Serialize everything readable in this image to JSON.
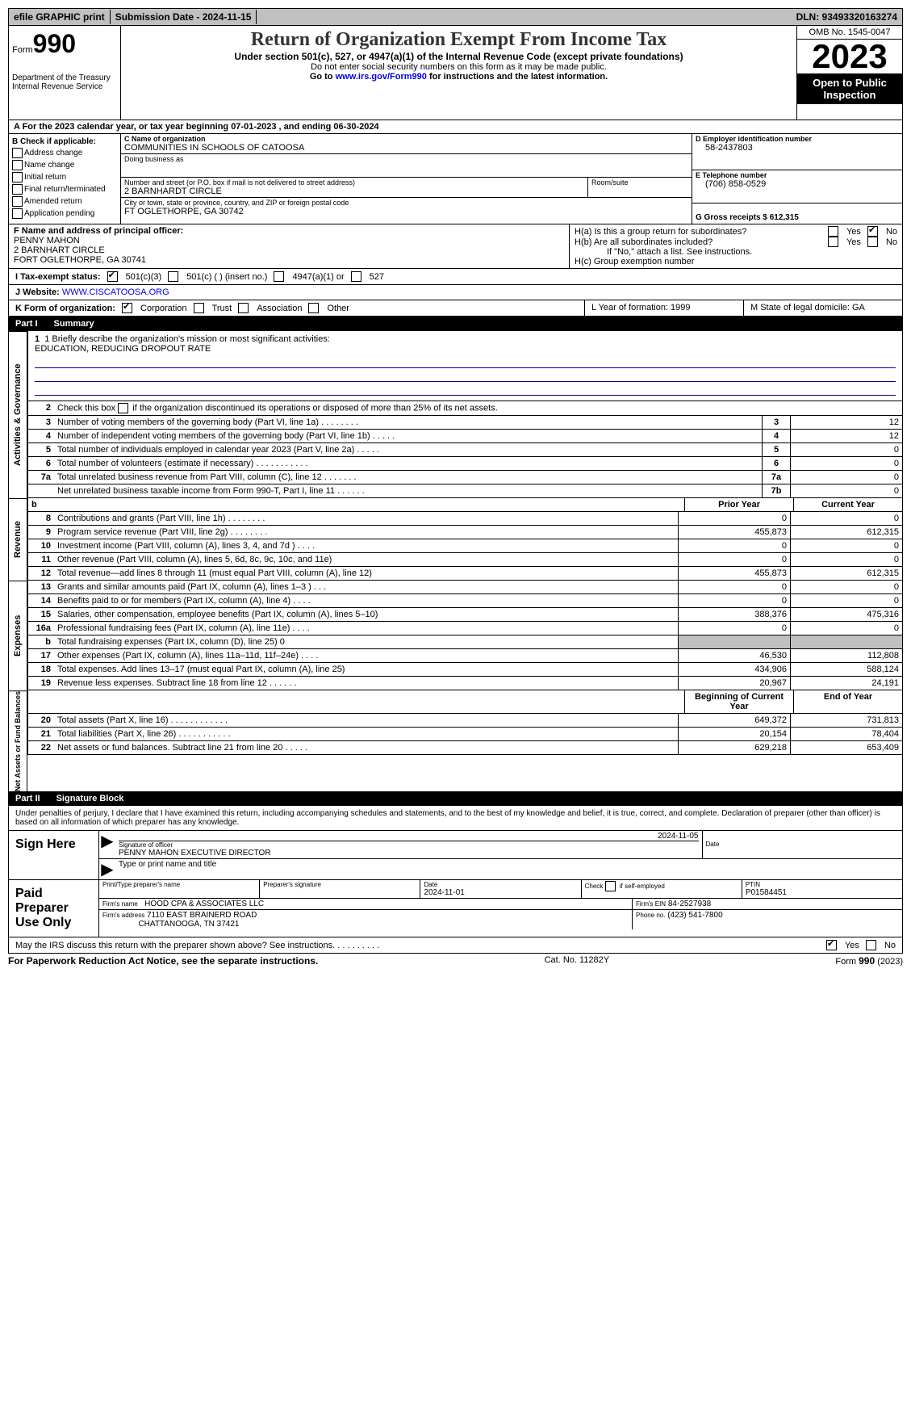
{
  "top_bar": {
    "efile": "efile GRAPHIC print",
    "submission": "Submission Date - 2024-11-15",
    "dln": "DLN: 93493320163274"
  },
  "header": {
    "form_prefix": "Form",
    "form_num": "990",
    "dept": "Department of the Treasury Internal Revenue Service",
    "title": "Return of Organization Exempt From Income Tax",
    "sub": "Under section 501(c), 527, or 4947(a)(1) of the Internal Revenue Code (except private foundations)",
    "note1": "Do not enter social security numbers on this form as it may be made public.",
    "note2_pre": "Go to ",
    "note2_link": "www.irs.gov/Form990",
    "note2_post": " for instructions and the latest information.",
    "omb": "OMB No. 1545-0047",
    "year": "2023",
    "open": "Open to Public Inspection"
  },
  "row_a": "A For the 2023 calendar year, or tax year beginning 07-01-2023   , and ending 06-30-2024",
  "box_b": {
    "label": "B Check if applicable:",
    "opts": [
      "Address change",
      "Name change",
      "Initial return",
      "Final return/terminated",
      "Amended return",
      "Application pending"
    ]
  },
  "box_c": {
    "name_lbl": "C Name of organization",
    "name": "COMMUNITIES IN SCHOOLS OF CATOOSA",
    "dba_lbl": "Doing business as",
    "dba": "",
    "street_lbl": "Number and street (or P.O. box if mail is not delivered to street address)",
    "street": "2 BARNHARDT CIRCLE",
    "room_lbl": "Room/suite",
    "city_lbl": "City or town, state or province, country, and ZIP or foreign postal code",
    "city": "FT OGLETHORPE, GA   30742"
  },
  "box_d": {
    "lbl": "D Employer identification number",
    "val": "58-2437803"
  },
  "box_e": {
    "lbl": "E Telephone number",
    "val": "(706) 858-0529"
  },
  "box_g": {
    "lbl": "G Gross receipts $ 612,315"
  },
  "box_f": {
    "lbl": "F  Name and address of principal officer:",
    "l1": "PENNY MAHON",
    "l2": "2 BARNHART CIRCLE",
    "l3": "FORT OGLETHORPE, GA   30741"
  },
  "box_h": {
    "ha": "H(a)  Is this a group return for subordinates?",
    "hb": "H(b)  Are all subordinates included?",
    "hnote": "If \"No,\" attach a list. See instructions.",
    "hc": "H(c)  Group exemption number"
  },
  "row_i": {
    "lbl": "I     Tax-exempt status:",
    "o1": "501(c)(3)",
    "o2": "501(c) (  ) (insert no.)",
    "o3": "4947(a)(1) or",
    "o4": "527"
  },
  "row_j": {
    "lbl": "J     Website:",
    "val": " WWW.CISCATOOSA.ORG"
  },
  "row_k": {
    "lbl": "K Form of organization:",
    "o1": "Corporation",
    "o2": "Trust",
    "o3": "Association",
    "o4": "Other"
  },
  "row_l": "L Year of formation: 1999",
  "row_m": "M State of legal domicile: GA",
  "part1": {
    "label": "Part I",
    "title": "Summary"
  },
  "mission": {
    "lbl": "1   Briefly describe the organization's mission or most significant activities:",
    "val": "EDUCATION, REDUCING DROPOUT RATE"
  },
  "line2": "Check this box      if the organization discontinued its operations or disposed of more than 25% of its net assets.",
  "gov_lines": [
    {
      "n": "3",
      "d": "Number of voting members of the governing body (Part VI, line 1a)  .   .   .   .   .   .   .   .",
      "b": "3",
      "v": "12"
    },
    {
      "n": "4",
      "d": "Number of independent voting members of the governing body (Part VI, line 1b)  .   .   .   .   .",
      "b": "4",
      "v": "12"
    },
    {
      "n": "5",
      "d": "Total number of individuals employed in calendar year 2023 (Part V, line 2a)  .   .   .   .   .",
      "b": "5",
      "v": "0"
    },
    {
      "n": "6",
      "d": "Total number of volunteers (estimate if necessary)   .   .   .   .   .   .   .   .   .   .   .",
      "b": "6",
      "v": "0"
    },
    {
      "n": "7a",
      "d": "Total unrelated business revenue from Part VIII, column (C), line 12    .   .   .   .   .   .   .",
      "b": "7a",
      "v": "0"
    },
    {
      "n": "",
      "d": "Net unrelated business taxable income from Form 990-T, Part I, line 11   .   .   .   .   .   .",
      "b": "7b",
      "v": "0"
    }
  ],
  "rev_header": {
    "c1": "Prior Year",
    "c2": "Current Year"
  },
  "rev_lines": [
    {
      "n": "8",
      "d": "Contributions and grants (Part VIII, line 1h)   .   .   .   .   .   .   .   .",
      "v1": "0",
      "v2": "0"
    },
    {
      "n": "9",
      "d": "Program service revenue (Part VIII, line 2g)   .   .   .   .   .   .   .   .",
      "v1": "455,873",
      "v2": "612,315"
    },
    {
      "n": "10",
      "d": "Investment income (Part VIII, column (A), lines 3, 4, and 7d )   .   .   .   .",
      "v1": "0",
      "v2": "0"
    },
    {
      "n": "11",
      "d": "Other revenue (Part VIII, column (A), lines 5, 6d, 8c, 9c, 10c, and 11e)",
      "v1": "0",
      "v2": "0"
    },
    {
      "n": "12",
      "d": "Total revenue—add lines 8 through 11 (must equal Part VIII, column (A), line 12)",
      "v1": "455,873",
      "v2": "612,315"
    }
  ],
  "exp_lines": [
    {
      "n": "13",
      "d": "Grants and similar amounts paid (Part IX, column (A), lines 1–3 )   .   .   .",
      "v1": "0",
      "v2": "0"
    },
    {
      "n": "14",
      "d": "Benefits paid to or for members (Part IX, column (A), line 4)   .   .   .   .",
      "v1": "0",
      "v2": "0"
    },
    {
      "n": "15",
      "d": "Salaries, other compensation, employee benefits (Part IX, column (A), lines 5–10)",
      "v1": "388,376",
      "v2": "475,316"
    },
    {
      "n": "16a",
      "d": "Professional fundraising fees (Part IX, column (A), line 11e)   .   .   .   .",
      "v1": "0",
      "v2": "0"
    },
    {
      "n": "b",
      "d": "Total fundraising expenses (Part IX, column (D), line 25) 0",
      "v1": "grey",
      "v2": "grey"
    },
    {
      "n": "17",
      "d": "Other expenses (Part IX, column (A), lines 11a–11d, 11f–24e)   .   .   .   .",
      "v1": "46,530",
      "v2": "112,808"
    },
    {
      "n": "18",
      "d": "Total expenses. Add lines 13–17 (must equal Part IX, column (A), line 25)",
      "v1": "434,906",
      "v2": "588,124"
    },
    {
      "n": "19",
      "d": "Revenue less expenses. Subtract line 18 from line 12   .   .   .   .   .   .",
      "v1": "20,967",
      "v2": "24,191"
    }
  ],
  "net_header": {
    "c1": "Beginning of Current Year",
    "c2": "End of Year"
  },
  "net_lines": [
    {
      "n": "20",
      "d": "Total assets (Part X, line 16)   .   .   .   .   .   .   .   .   .   .   .   .",
      "v1": "649,372",
      "v2": "731,813"
    },
    {
      "n": "21",
      "d": "Total liabilities (Part X, line 26)   .   .   .   .   .   .   .   .   .   .   .",
      "v1": "20,154",
      "v2": "78,404"
    },
    {
      "n": "22",
      "d": "Net assets or fund balances. Subtract line 21 from line 20   .   .   .   .   .",
      "v1": "629,218",
      "v2": "653,409"
    }
  ],
  "vlabels": {
    "gov": "Activities & Governance",
    "rev": "Revenue",
    "exp": "Expenses",
    "net": "Net Assets or Fund Balances"
  },
  "part2": {
    "label": "Part II",
    "title": "Signature Block"
  },
  "perjury": "Under penalties of perjury, I declare that I have examined this return, including accompanying schedules and statements, and to the best of my knowledge and belief, it is true, correct, and complete. Declaration of preparer (other than officer) is based on all information of which preparer has any knowledge.",
  "sign": {
    "here": "Sign Here",
    "date": "2024-11-05",
    "sig_lbl": "Signature of officer",
    "name": "PENNY MAHON  EXECUTIVE DIRECTOR",
    "type_lbl": "Type or print name and title",
    "date_lbl": "Date"
  },
  "paid": {
    "label": "Paid Preparer Use Only",
    "h1": "Print/Type preparer's name",
    "h2": "Preparer's signature",
    "h3": "Date",
    "h4_pre": "Check",
    "h4_post": "if self-employed",
    "h5": "PTIN",
    "date": "2024-11-01",
    "ptin": "P01584451",
    "firm_lbl": "Firm's name",
    "firm": "HOOD CPA & ASSOCIATES LLC",
    "ein_lbl": "Firm's EIN",
    "ein": "84-2527938",
    "addr_lbl": "Firm's address",
    "addr1": "7110 EAST BRAINERD ROAD",
    "addr2": "CHATTANOOGA, TN   37421",
    "phone_lbl": "Phone no.",
    "phone": "(423) 541-7800"
  },
  "discuss": "May the IRS discuss this return with the preparer shown above? See instructions.    .    .    .    .    .    .    .    .    .",
  "footer": {
    "left": "For Paperwork Reduction Act Notice, see the separate instructions.",
    "mid": "Cat. No. 11282Y",
    "right_pre": "Form ",
    "right_b": "990",
    "right_post": " (2023)"
  }
}
